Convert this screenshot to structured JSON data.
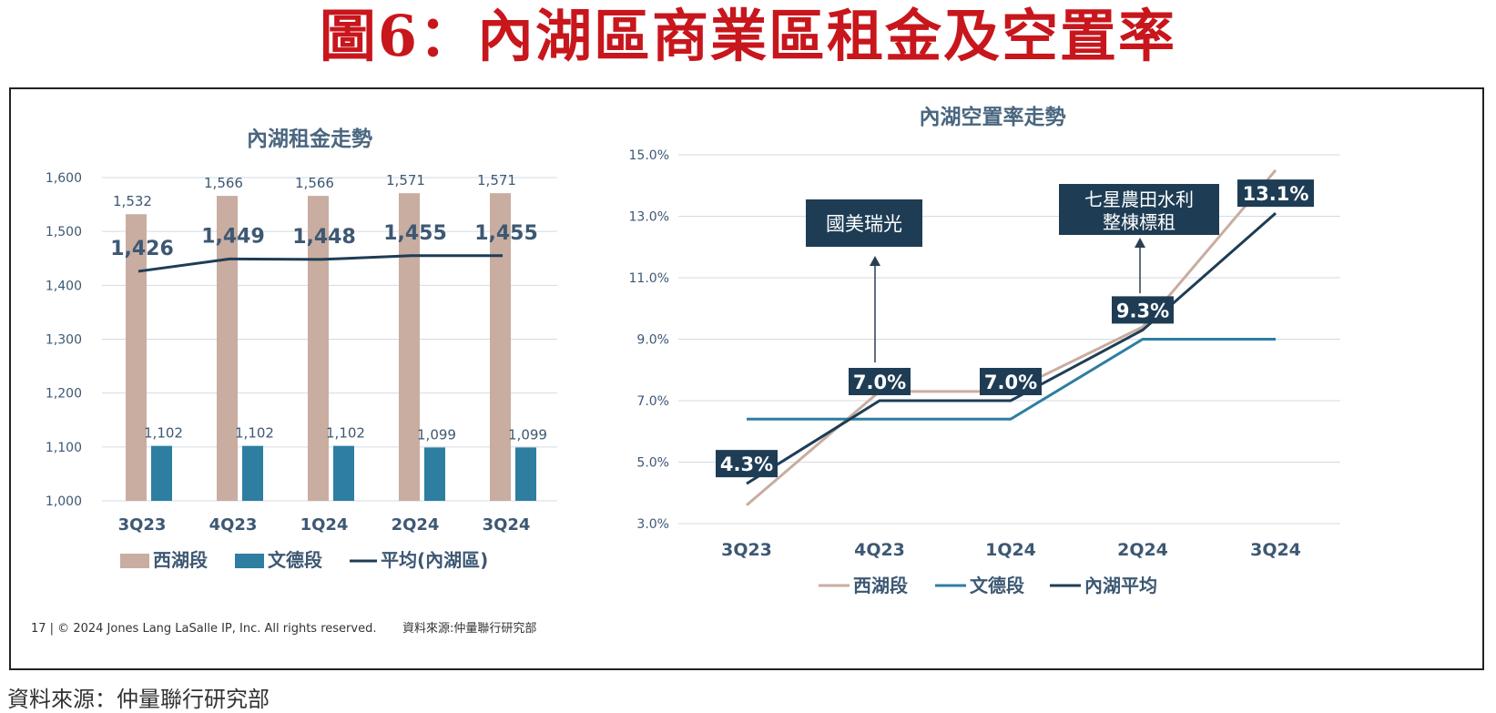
{
  "headline": "圖6：內湖區商業區租金及空置率",
  "bottom_source": "資料來源：仲量聯行研究部",
  "footer": {
    "copyright": "17 | © 2024 Jones Lang LaSalle IP, Inc. All rights reserved.",
    "source": "資料來源:仲量聯行研究部"
  },
  "colors": {
    "westlake": "#c8ada0",
    "wende": "#2d7ea1",
    "average": "#1e3d55",
    "headline": "#c8161d"
  },
  "chart_data": [
    {
      "type": "bar",
      "title": "內湖租金走勢",
      "categories": [
        "3Q23",
        "4Q23",
        "1Q24",
        "2Q24",
        "3Q24"
      ],
      "ylim": [
        1000,
        1600
      ],
      "yticks": [
        "1,000",
        "1,100",
        "1,200",
        "1,300",
        "1,400",
        "1,500",
        "1,600"
      ],
      "series": [
        {
          "name": "西湖段",
          "kind": "bar",
          "values": [
            1532,
            1566,
            1566,
            1571,
            1571
          ],
          "labels": [
            "1,532",
            "1,566",
            "1,566",
            "1,571",
            "1,571"
          ]
        },
        {
          "name": "文德段",
          "kind": "bar",
          "values": [
            1102,
            1102,
            1102,
            1099,
            1099
          ],
          "labels": [
            "1,102",
            "1,102",
            "1,102",
            "1,099",
            "1,099"
          ]
        },
        {
          "name": "平均(內湖區)",
          "kind": "line",
          "values": [
            1426,
            1449,
            1448,
            1455,
            1455
          ],
          "labels": [
            "1,426",
            "1,449",
            "1,448",
            "1,455",
            "1,455"
          ]
        }
      ]
    },
    {
      "type": "line",
      "title": "內湖空置率走勢",
      "categories": [
        "3Q23",
        "4Q23",
        "1Q24",
        "2Q24",
        "3Q24"
      ],
      "ylim": [
        3.0,
        15.0
      ],
      "yticks": [
        "3.0%",
        "5.0%",
        "7.0%",
        "9.0%",
        "11.0%",
        "13.0%",
        "15.0%"
      ],
      "series": [
        {
          "name": "西湖段",
          "values": [
            3.6,
            7.3,
            7.3,
            9.4,
            14.5
          ]
        },
        {
          "name": "文德段",
          "values": [
            6.4,
            6.4,
            6.4,
            9.0,
            9.0
          ]
        },
        {
          "name": "內湖平均",
          "values": [
            4.3,
            7.0,
            7.0,
            9.3,
            13.1
          ],
          "labels": [
            "4.3%",
            "7.0%",
            "7.0%",
            "9.3%",
            "13.1%"
          ]
        }
      ],
      "annotations": [
        {
          "text": [
            "國美瑞光"
          ],
          "category_index": 1
        },
        {
          "text": [
            "七星農田水利",
            "整棟標租"
          ],
          "category_index": 3
        }
      ]
    }
  ]
}
